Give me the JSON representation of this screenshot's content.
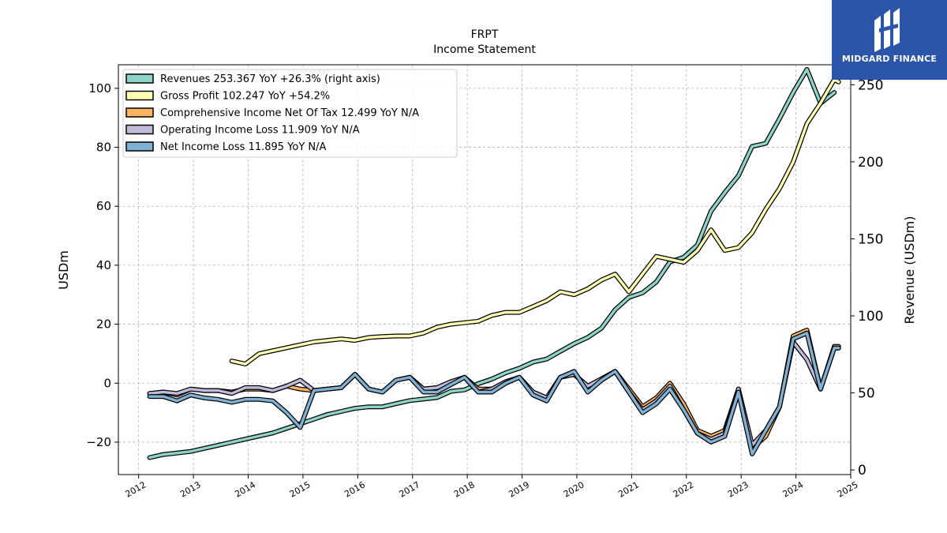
{
  "brand": {
    "name": "MIDGARD FINANCE",
    "background": "#2a55a8"
  },
  "chart_data": {
    "type": "line",
    "title": "FRPT",
    "subtitle": "Income Statement",
    "ylabel": "USDm",
    "y2label": "Revenue (USDm)",
    "ylim": [
      -31,
      108
    ],
    "y2lim": [
      -3,
      263
    ],
    "xlim": [
      2011.63,
      2025.0
    ],
    "x_ticks": [
      "2012",
      "2013",
      "2014",
      "2015",
      "2016",
      "2017",
      "2018",
      "2019",
      "2020",
      "2021",
      "2022",
      "2023",
      "2024",
      "2025"
    ],
    "y_ticks": [
      "−20",
      "0",
      "20",
      "40",
      "60",
      "80",
      "100"
    ],
    "y2_ticks": [
      "0",
      "50",
      "100",
      "150",
      "200",
      "250"
    ],
    "grid": true,
    "legend_position": "top-left",
    "series": [
      {
        "name": "Revenues",
        "legend": "Revenues  253.367 YoY +26.3% (right axis)",
        "color": "#8dd3c7",
        "axis": "right",
        "x": [
          2012.2,
          2012.45,
          2012.7,
          2012.95,
          2013.2,
          2013.45,
          2013.7,
          2013.95,
          2014.2,
          2014.45,
          2014.7,
          2014.95,
          2015.2,
          2015.45,
          2015.7,
          2015.95,
          2016.2,
          2016.45,
          2016.7,
          2016.95,
          2017.2,
          2017.45,
          2017.7,
          2017.95,
          2018.2,
          2018.45,
          2018.7,
          2018.95,
          2019.2,
          2019.45,
          2019.7,
          2019.95,
          2020.2,
          2020.45,
          2020.7,
          2020.95,
          2021.2,
          2021.45,
          2021.7,
          2021.95,
          2022.2,
          2022.45,
          2022.7,
          2022.95,
          2023.2,
          2023.45,
          2023.7,
          2023.95,
          2024.2,
          2024.45,
          2024.7
        ],
        "values": [
          8,
          10,
          11,
          12,
          14,
          16,
          18,
          20,
          22,
          24,
          27,
          30,
          33,
          36,
          38,
          40,
          41,
          41,
          43,
          45,
          46,
          47,
          51,
          52,
          56,
          59,
          63,
          66,
          70,
          72,
          77,
          82,
          86,
          92,
          104,
          112,
          115,
          122,
          135,
          138,
          146,
          168,
          180,
          191,
          210,
          212,
          228,
          245,
          260,
          238,
          245
        ]
      },
      {
        "name": "Gross Profit",
        "legend": "Gross Profit  102.247 YoY +54.2%",
        "color": "#ffffb3",
        "axis": "left",
        "x": [
          2013.7,
          2013.95,
          2014.2,
          2014.45,
          2014.7,
          2014.95,
          2015.2,
          2015.45,
          2015.7,
          2015.95,
          2016.2,
          2016.45,
          2016.7,
          2016.95,
          2017.2,
          2017.45,
          2017.7,
          2017.95,
          2018.2,
          2018.45,
          2018.7,
          2018.95,
          2019.2,
          2019.45,
          2019.7,
          2019.95,
          2020.2,
          2020.45,
          2020.7,
          2020.95,
          2021.2,
          2021.45,
          2021.7,
          2021.95,
          2022.2,
          2022.45,
          2022.7,
          2022.95,
          2023.2,
          2023.45,
          2023.7,
          2023.95,
          2024.2,
          2024.45,
          2024.7,
          2024.78
        ],
        "values": [
          7.5,
          6.5,
          10,
          11,
          12,
          13,
          14,
          14.5,
          15,
          14.5,
          15.5,
          15.8,
          16,
          16,
          17,
          19,
          20,
          20.5,
          21,
          23,
          24,
          24,
          26,
          28,
          31,
          30,
          32,
          35,
          37,
          31,
          37,
          43,
          42,
          41,
          45,
          52,
          45,
          46,
          51,
          59,
          66,
          75,
          88,
          95,
          103,
          102.2
        ]
      },
      {
        "name": "Comprehensive Income Net Of Tax",
        "legend": "Comprehensive Income Net Of Tax  12.499 YoY N/A",
        "color": "#fdb462",
        "axis": "left",
        "x": [
          2012.2,
          2012.45,
          2012.7,
          2012.95,
          2013.2,
          2013.45,
          2013.7,
          2013.95,
          2014.2,
          2014.45,
          2014.7,
          2014.95,
          2015.2,
          2015.45,
          2015.7,
          2015.95,
          2016.2,
          2016.45,
          2016.7,
          2016.95,
          2017.2,
          2017.45,
          2017.7,
          2017.95,
          2018.2,
          2018.45,
          2018.7,
          2018.95,
          2019.2,
          2019.45,
          2019.7,
          2019.95,
          2020.2,
          2020.45,
          2020.7,
          2020.95,
          2021.2,
          2021.45,
          2021.7,
          2021.95,
          2022.2,
          2022.45,
          2022.7,
          2022.95,
          2023.2,
          2023.45,
          2023.7,
          2023.95,
          2024.2,
          2024.45,
          2024.7,
          2024.78
        ],
        "values": [
          -3.5,
          -3,
          -4,
          -2,
          -2.5,
          -2.5,
          -3,
          -2,
          -2,
          -2.5,
          -1,
          -2,
          -2.5,
          -2,
          -1.5,
          3,
          -2,
          -3,
          1,
          2,
          -2,
          -1.5,
          0,
          2,
          -2,
          -2,
          0,
          2,
          -3,
          -5,
          2,
          3,
          -1,
          1,
          4,
          -2,
          -8,
          -5,
          0,
          -7,
          -16,
          -18,
          -16,
          -2,
          -22,
          -18,
          -8,
          16,
          18,
          -2,
          12.5,
          12.5
        ]
      },
      {
        "name": "Operating Income Loss",
        "legend": "Operating Income Loss  11.909 YoY N/A",
        "color": "#bebada",
        "axis": "left",
        "x": [
          2012.2,
          2012.45,
          2012.7,
          2012.95,
          2013.2,
          2013.45,
          2013.7,
          2013.95,
          2014.2,
          2014.45,
          2014.7,
          2014.95,
          2015.2,
          2015.45,
          2015.7,
          2015.95,
          2016.2,
          2016.45,
          2016.7,
          2016.95,
          2017.2,
          2017.45,
          2017.7,
          2017.95,
          2018.2,
          2018.45,
          2018.7,
          2018.95,
          2019.2,
          2019.45,
          2019.7,
          2019.95,
          2020.2,
          2020.45,
          2020.7,
          2020.95,
          2021.2,
          2021.45,
          2021.7,
          2021.95,
          2022.2,
          2022.45,
          2022.7,
          2022.95,
          2023.2,
          2023.45,
          2023.7,
          2023.95,
          2024.2,
          2024.45,
          2024.7,
          2024.78
        ],
        "values": [
          -3.5,
          -3,
          -3.5,
          -2,
          -2.5,
          -2.5,
          -3.5,
          -1.5,
          -1.5,
          -2.5,
          -1,
          1,
          -2.5,
          -2,
          -1.5,
          3,
          -2,
          -3,
          1,
          2,
          -2,
          -1.5,
          0.5,
          2,
          -3,
          -2,
          0.5,
          2,
          -3,
          -5,
          2,
          3,
          -1,
          1.5,
          4,
          -3,
          -9,
          -6,
          -1,
          -9,
          -17,
          -19,
          -17,
          -2,
          -21,
          -16,
          -8,
          14,
          8,
          -2,
          11.9,
          11.9
        ]
      },
      {
        "name": "Net Income Loss",
        "legend": "Net Income Loss  11.895 YoY N/A",
        "color": "#80b1d3",
        "axis": "left",
        "x": [
          2012.2,
          2012.45,
          2012.7,
          2012.95,
          2013.2,
          2013.45,
          2013.7,
          2013.95,
          2014.2,
          2014.45,
          2014.7,
          2014.95,
          2015.2,
          2015.45,
          2015.7,
          2015.95,
          2016.2,
          2016.45,
          2016.7,
          2016.95,
          2017.2,
          2017.45,
          2017.7,
          2017.95,
          2018.2,
          2018.45,
          2018.7,
          2018.95,
          2019.2,
          2019.45,
          2019.7,
          2019.95,
          2020.2,
          2020.45,
          2020.7,
          2020.95,
          2021.2,
          2021.45,
          2021.7,
          2021.95,
          2022.2,
          2022.45,
          2022.7,
          2022.95,
          2023.2,
          2023.45,
          2023.7,
          2023.95,
          2024.2,
          2024.45,
          2024.7,
          2024.78
        ],
        "values": [
          -4.5,
          -4.5,
          -6,
          -4,
          -5,
          -5.5,
          -6.5,
          -5.5,
          -5.5,
          -6,
          -10,
          -15,
          -2.5,
          -2,
          -1.5,
          3,
          -2,
          -3,
          1,
          2,
          -3,
          -3,
          -0.5,
          2,
          -3,
          -3,
          0,
          2,
          -4,
          -6,
          2,
          4,
          -3,
          1,
          4,
          -3,
          -10,
          -7,
          -2,
          -9,
          -17,
          -20,
          -18,
          -3,
          -24,
          -16,
          -8,
          15,
          17,
          -2,
          11.9,
          11.9
        ]
      }
    ]
  }
}
